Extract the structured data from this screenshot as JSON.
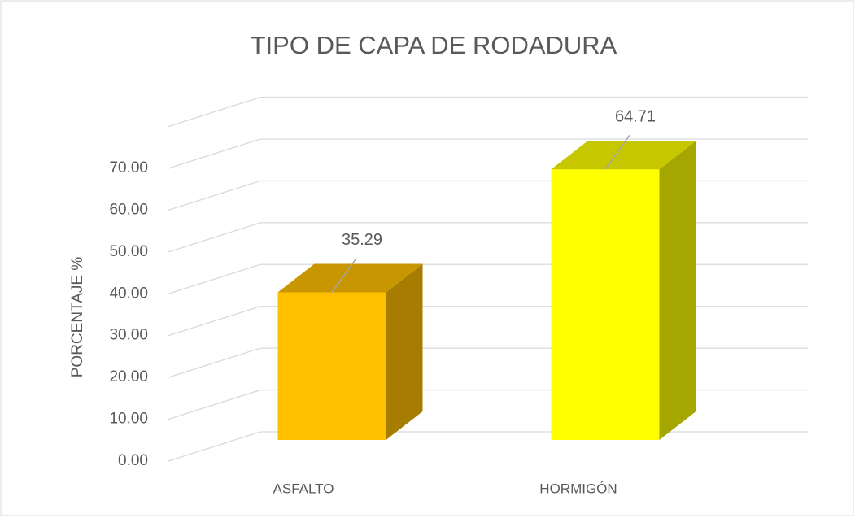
{
  "chart_data": {
    "type": "bar3d",
    "title": "TIPO DE CAPA DE RODADURA",
    "y_label": "PORCENTAJE %",
    "categories": [
      "ASFALTO",
      "HORMIGÓN"
    ],
    "values": [
      35.29,
      64.71
    ],
    "colors": [
      "#FFC000",
      "#FFFF00"
    ],
    "ylim": [
      0,
      80
    ],
    "yticks": [
      {
        "value": 0,
        "label": "0.00"
      },
      {
        "value": 10,
        "label": "10.00"
      },
      {
        "value": 20,
        "label": "20.00"
      },
      {
        "value": 30,
        "label": "30.00"
      },
      {
        "value": 40,
        "label": "40.00"
      },
      {
        "value": 50,
        "label": "50.00"
      },
      {
        "value": 60,
        "label": "60.00"
      },
      {
        "value": 70,
        "label": "70.00"
      }
    ],
    "grid": true
  }
}
